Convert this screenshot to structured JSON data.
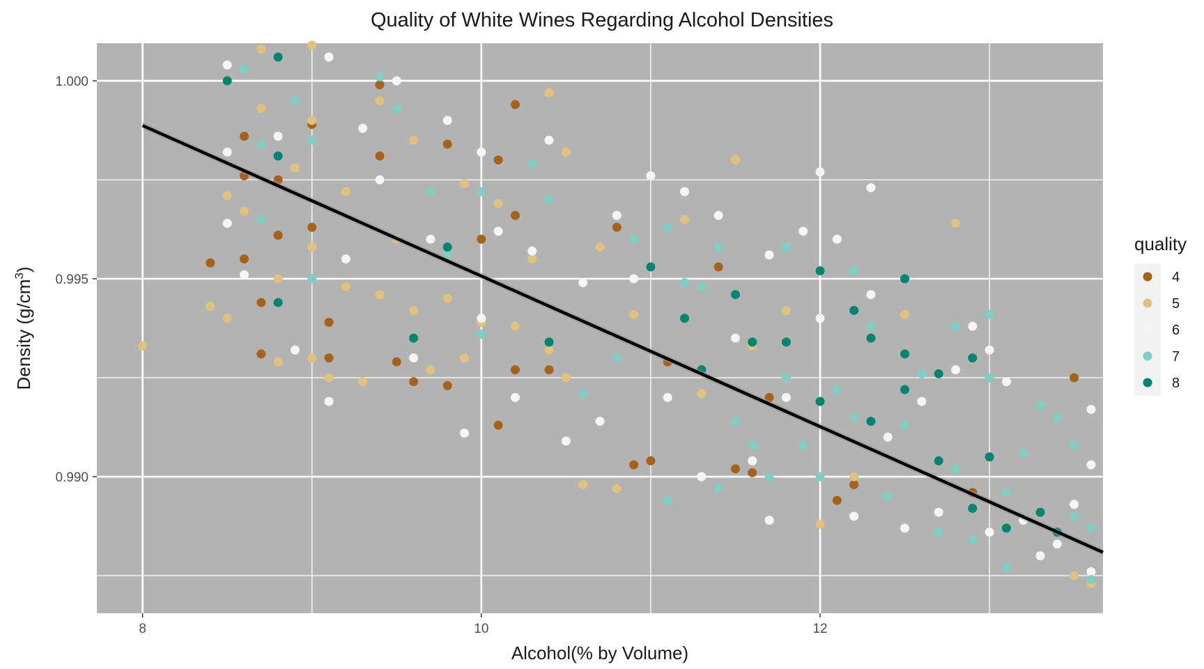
{
  "chart_data": {
    "type": "scatter",
    "title": "Quality of White Wines Regarding Alcohol Densities",
    "xlabel": "Alcohol(% by Volume)",
    "ylabel_prefix": "Density (g/cm",
    "ylabel_sup": "3",
    "ylabel_suffix": ")",
    "xlim": [
      7.73,
      13.67
    ],
    "ylim": [
      0.98655,
      1.00095
    ],
    "x_ticks": [
      8,
      10,
      12
    ],
    "x_tick_labels": [
      "8",
      "10",
      "12"
    ],
    "y_ticks": [
      0.99,
      0.995,
      1.0
    ],
    "y_tick_labels": [
      "0.990",
      "0.995",
      "1.000"
    ],
    "grid": true,
    "background_color": "#b3b3b3",
    "legend": {
      "title": "quality",
      "placement": "right",
      "entries": [
        {
          "label": "4",
          "color": "#a6611a"
        },
        {
          "label": "5",
          "color": "#dfc27d"
        },
        {
          "label": "6",
          "color": "#f5f5f5"
        },
        {
          "label": "7",
          "color": "#80cdc1"
        },
        {
          "label": "8",
          "color": "#018571"
        }
      ]
    },
    "trend_line": {
      "type": "linear regression",
      "color": "#000000",
      "points": [
        [
          8.0,
          0.99887
        ],
        [
          13.67,
          0.98809
        ]
      ]
    },
    "series": [
      {
        "name": "4",
        "color": "#a6611a",
        "points": [
          [
            8.4,
            0.9954
          ],
          [
            8.6,
            0.9986
          ],
          [
            8.6,
            0.9976
          ],
          [
            8.6,
            0.9955
          ],
          [
            8.7,
            0.9944
          ],
          [
            8.7,
            0.9931
          ],
          [
            8.8,
            0.9975
          ],
          [
            8.8,
            0.9961
          ],
          [
            9.0,
            0.9989
          ],
          [
            9.0,
            0.9963
          ],
          [
            9.1,
            0.9939
          ],
          [
            9.1,
            0.993
          ],
          [
            9.4,
            0.9999
          ],
          [
            9.4,
            0.9981
          ],
          [
            9.5,
            0.9929
          ],
          [
            9.6,
            0.9924
          ],
          [
            9.8,
            0.9984
          ],
          [
            9.8,
            0.9923
          ],
          [
            10.0,
            0.996
          ],
          [
            10.1,
            0.998
          ],
          [
            10.1,
            0.9913
          ],
          [
            10.2,
            0.9994
          ],
          [
            10.2,
            0.9966
          ],
          [
            10.2,
            0.9927
          ],
          [
            10.4,
            0.9927
          ],
          [
            10.8,
            0.9963
          ],
          [
            10.9,
            0.9903
          ],
          [
            11.0,
            0.9904
          ],
          [
            11.1,
            0.9929
          ],
          [
            11.4,
            0.9953
          ],
          [
            11.5,
            0.9902
          ],
          [
            11.6,
            0.9901
          ],
          [
            11.7,
            0.992
          ],
          [
            12.1,
            0.9894
          ],
          [
            12.2,
            0.9898
          ],
          [
            12.9,
            0.9896
          ],
          [
            13.5,
            0.9925
          ]
        ]
      },
      {
        "name": "5",
        "color": "#dfc27d",
        "points": [
          [
            8.0,
            0.9933
          ],
          [
            8.4,
            0.9943
          ],
          [
            8.5,
            0.994
          ],
          [
            8.5,
            0.9971
          ],
          [
            8.6,
            0.9967
          ],
          [
            8.7,
            1.0008
          ],
          [
            8.7,
            0.9993
          ],
          [
            8.8,
            0.995
          ],
          [
            8.8,
            0.9929
          ],
          [
            8.9,
            0.9978
          ],
          [
            9.0,
            1.0009
          ],
          [
            9.0,
            0.999
          ],
          [
            9.0,
            0.9958
          ],
          [
            9.0,
            0.993
          ],
          [
            9.1,
            0.9925
          ],
          [
            9.2,
            0.9972
          ],
          [
            9.2,
            0.9948
          ],
          [
            9.3,
            0.9924
          ],
          [
            9.4,
            0.9995
          ],
          [
            9.4,
            0.9946
          ],
          [
            9.5,
            0.996
          ],
          [
            9.6,
            0.9985
          ],
          [
            9.6,
            0.9942
          ],
          [
            9.7,
            0.9927
          ],
          [
            9.8,
            0.9945
          ],
          [
            9.9,
            0.9974
          ],
          [
            9.9,
            0.993
          ],
          [
            10.0,
            0.9939
          ],
          [
            10.1,
            0.9969
          ],
          [
            10.2,
            0.9938
          ],
          [
            10.3,
            0.9955
          ],
          [
            10.4,
            0.9997
          ],
          [
            10.4,
            0.9932
          ],
          [
            10.5,
            0.9982
          ],
          [
            10.5,
            0.9925
          ],
          [
            10.6,
            0.9898
          ],
          [
            10.7,
            0.9958
          ],
          [
            10.8,
            0.9897
          ],
          [
            10.9,
            0.9941
          ],
          [
            11.2,
            0.9965
          ],
          [
            11.3,
            0.9921
          ],
          [
            11.5,
            0.998
          ],
          [
            11.6,
            0.9933
          ],
          [
            11.8,
            0.9942
          ],
          [
            12.0,
            0.9888
          ],
          [
            12.2,
            0.99
          ],
          [
            12.5,
            0.9941
          ],
          [
            12.8,
            0.9964
          ],
          [
            13.0,
            0.9905
          ],
          [
            13.5,
            0.9875
          ],
          [
            13.6,
            0.9873
          ]
        ]
      },
      {
        "name": "6",
        "color": "#f5f5f5",
        "points": [
          [
            8.5,
            1.0004
          ],
          [
            8.5,
            0.9982
          ],
          [
            8.5,
            0.9964
          ],
          [
            8.6,
            0.9951
          ],
          [
            8.8,
            0.9986
          ],
          [
            8.9,
            0.9932
          ],
          [
            9.1,
            1.0006
          ],
          [
            9.1,
            0.9919
          ],
          [
            9.2,
            0.9955
          ],
          [
            9.3,
            0.9988
          ],
          [
            9.4,
            0.9975
          ],
          [
            9.5,
            1.0
          ],
          [
            9.6,
            0.993
          ],
          [
            9.7,
            0.996
          ],
          [
            9.8,
            0.999
          ],
          [
            9.9,
            0.9911
          ],
          [
            10.0,
            0.9982
          ],
          [
            10.0,
            0.994
          ],
          [
            10.1,
            0.9962
          ],
          [
            10.2,
            0.992
          ],
          [
            10.3,
            0.9957
          ],
          [
            10.4,
            0.9985
          ],
          [
            10.5,
            0.9909
          ],
          [
            10.6,
            0.9949
          ],
          [
            10.7,
            0.9914
          ],
          [
            10.8,
            0.9966
          ],
          [
            10.9,
            0.995
          ],
          [
            11.0,
            0.9976
          ],
          [
            11.1,
            0.992
          ],
          [
            11.2,
            0.9972
          ],
          [
            11.3,
            0.99
          ],
          [
            11.4,
            0.9966
          ],
          [
            11.5,
            0.9935
          ],
          [
            11.6,
            0.9904
          ],
          [
            11.7,
            0.9956
          ],
          [
            11.7,
            0.9889
          ],
          [
            11.8,
            0.992
          ],
          [
            11.9,
            0.9962
          ],
          [
            12.0,
            0.9977
          ],
          [
            12.0,
            0.994
          ],
          [
            12.1,
            0.996
          ],
          [
            12.2,
            0.989
          ],
          [
            12.3,
            0.9973
          ],
          [
            12.3,
            0.9946
          ],
          [
            12.4,
            0.991
          ],
          [
            12.5,
            0.9887
          ],
          [
            12.6,
            0.9919
          ],
          [
            12.7,
            0.9891
          ],
          [
            12.8,
            0.9927
          ],
          [
            12.9,
            0.9938
          ],
          [
            13.0,
            0.9932
          ],
          [
            13.0,
            0.9886
          ],
          [
            13.1,
            0.9924
          ],
          [
            13.2,
            0.9889
          ],
          [
            13.3,
            0.988
          ],
          [
            13.4,
            0.9883
          ],
          [
            13.5,
            0.9893
          ],
          [
            13.6,
            0.9917
          ],
          [
            13.6,
            0.9903
          ],
          [
            13.6,
            0.9876
          ]
        ]
      },
      {
        "name": "7",
        "color": "#80cdc1",
        "points": [
          [
            8.6,
            1.0003
          ],
          [
            8.7,
            0.9984
          ],
          [
            8.7,
            0.9965
          ],
          [
            8.9,
            0.9995
          ],
          [
            9.0,
            0.9985
          ],
          [
            9.0,
            0.995
          ],
          [
            9.4,
            1.0001
          ],
          [
            9.5,
            0.9993
          ],
          [
            9.7,
            0.9972
          ],
          [
            9.8,
            0.9956
          ],
          [
            10.0,
            0.9972
          ],
          [
            10.0,
            0.9936
          ],
          [
            10.3,
            0.9979
          ],
          [
            10.4,
            0.997
          ],
          [
            10.6,
            0.9921
          ],
          [
            10.8,
            0.993
          ],
          [
            10.9,
            0.996
          ],
          [
            11.1,
            0.9894
          ],
          [
            11.1,
            0.9963
          ],
          [
            11.2,
            0.9949
          ],
          [
            11.3,
            0.9948
          ],
          [
            11.4,
            0.9958
          ],
          [
            11.4,
            0.9897
          ],
          [
            11.5,
            0.9914
          ],
          [
            11.6,
            0.9908
          ],
          [
            11.7,
            0.99
          ],
          [
            11.8,
            0.9958
          ],
          [
            11.8,
            0.9925
          ],
          [
            11.9,
            0.9908
          ],
          [
            12.0,
            0.99
          ],
          [
            12.1,
            0.9922
          ],
          [
            12.2,
            0.9952
          ],
          [
            12.2,
            0.9915
          ],
          [
            12.3,
            0.9938
          ],
          [
            12.4,
            0.9895
          ],
          [
            12.5,
            0.9913
          ],
          [
            12.6,
            0.9926
          ],
          [
            12.7,
            0.9886
          ],
          [
            12.8,
            0.9938
          ],
          [
            12.8,
            0.9902
          ],
          [
            12.9,
            0.9884
          ],
          [
            13.0,
            0.9941
          ],
          [
            13.0,
            0.9925
          ],
          [
            13.1,
            0.9896
          ],
          [
            13.1,
            0.9877
          ],
          [
            13.2,
            0.9906
          ],
          [
            13.3,
            0.9918
          ],
          [
            13.4,
            0.9915
          ],
          [
            13.5,
            0.9908
          ],
          [
            13.5,
            0.989
          ],
          [
            13.6,
            0.9887
          ],
          [
            13.6,
            0.9874
          ]
        ]
      },
      {
        "name": "8",
        "color": "#018571",
        "points": [
          [
            8.5,
            1.0
          ],
          [
            8.8,
            1.0006
          ],
          [
            8.8,
            0.9981
          ],
          [
            8.8,
            0.9944
          ],
          [
            9.6,
            0.9935
          ],
          [
            9.8,
            0.9958
          ],
          [
            10.4,
            0.9934
          ],
          [
            11.0,
            0.9953
          ],
          [
            11.2,
            0.994
          ],
          [
            11.3,
            0.9927
          ],
          [
            11.5,
            0.9946
          ],
          [
            11.6,
            0.9934
          ],
          [
            11.8,
            0.9934
          ],
          [
            12.0,
            0.9952
          ],
          [
            12.0,
            0.9919
          ],
          [
            12.2,
            0.9942
          ],
          [
            12.3,
            0.9935
          ],
          [
            12.3,
            0.9914
          ],
          [
            12.5,
            0.995
          ],
          [
            12.5,
            0.9931
          ],
          [
            12.5,
            0.9922
          ],
          [
            12.7,
            0.9926
          ],
          [
            12.7,
            0.9904
          ],
          [
            12.9,
            0.993
          ],
          [
            12.9,
            0.9892
          ],
          [
            13.0,
            0.9905
          ],
          [
            13.1,
            0.9887
          ],
          [
            13.3,
            0.9891
          ],
          [
            13.4,
            0.9886
          ]
        ]
      }
    ]
  }
}
